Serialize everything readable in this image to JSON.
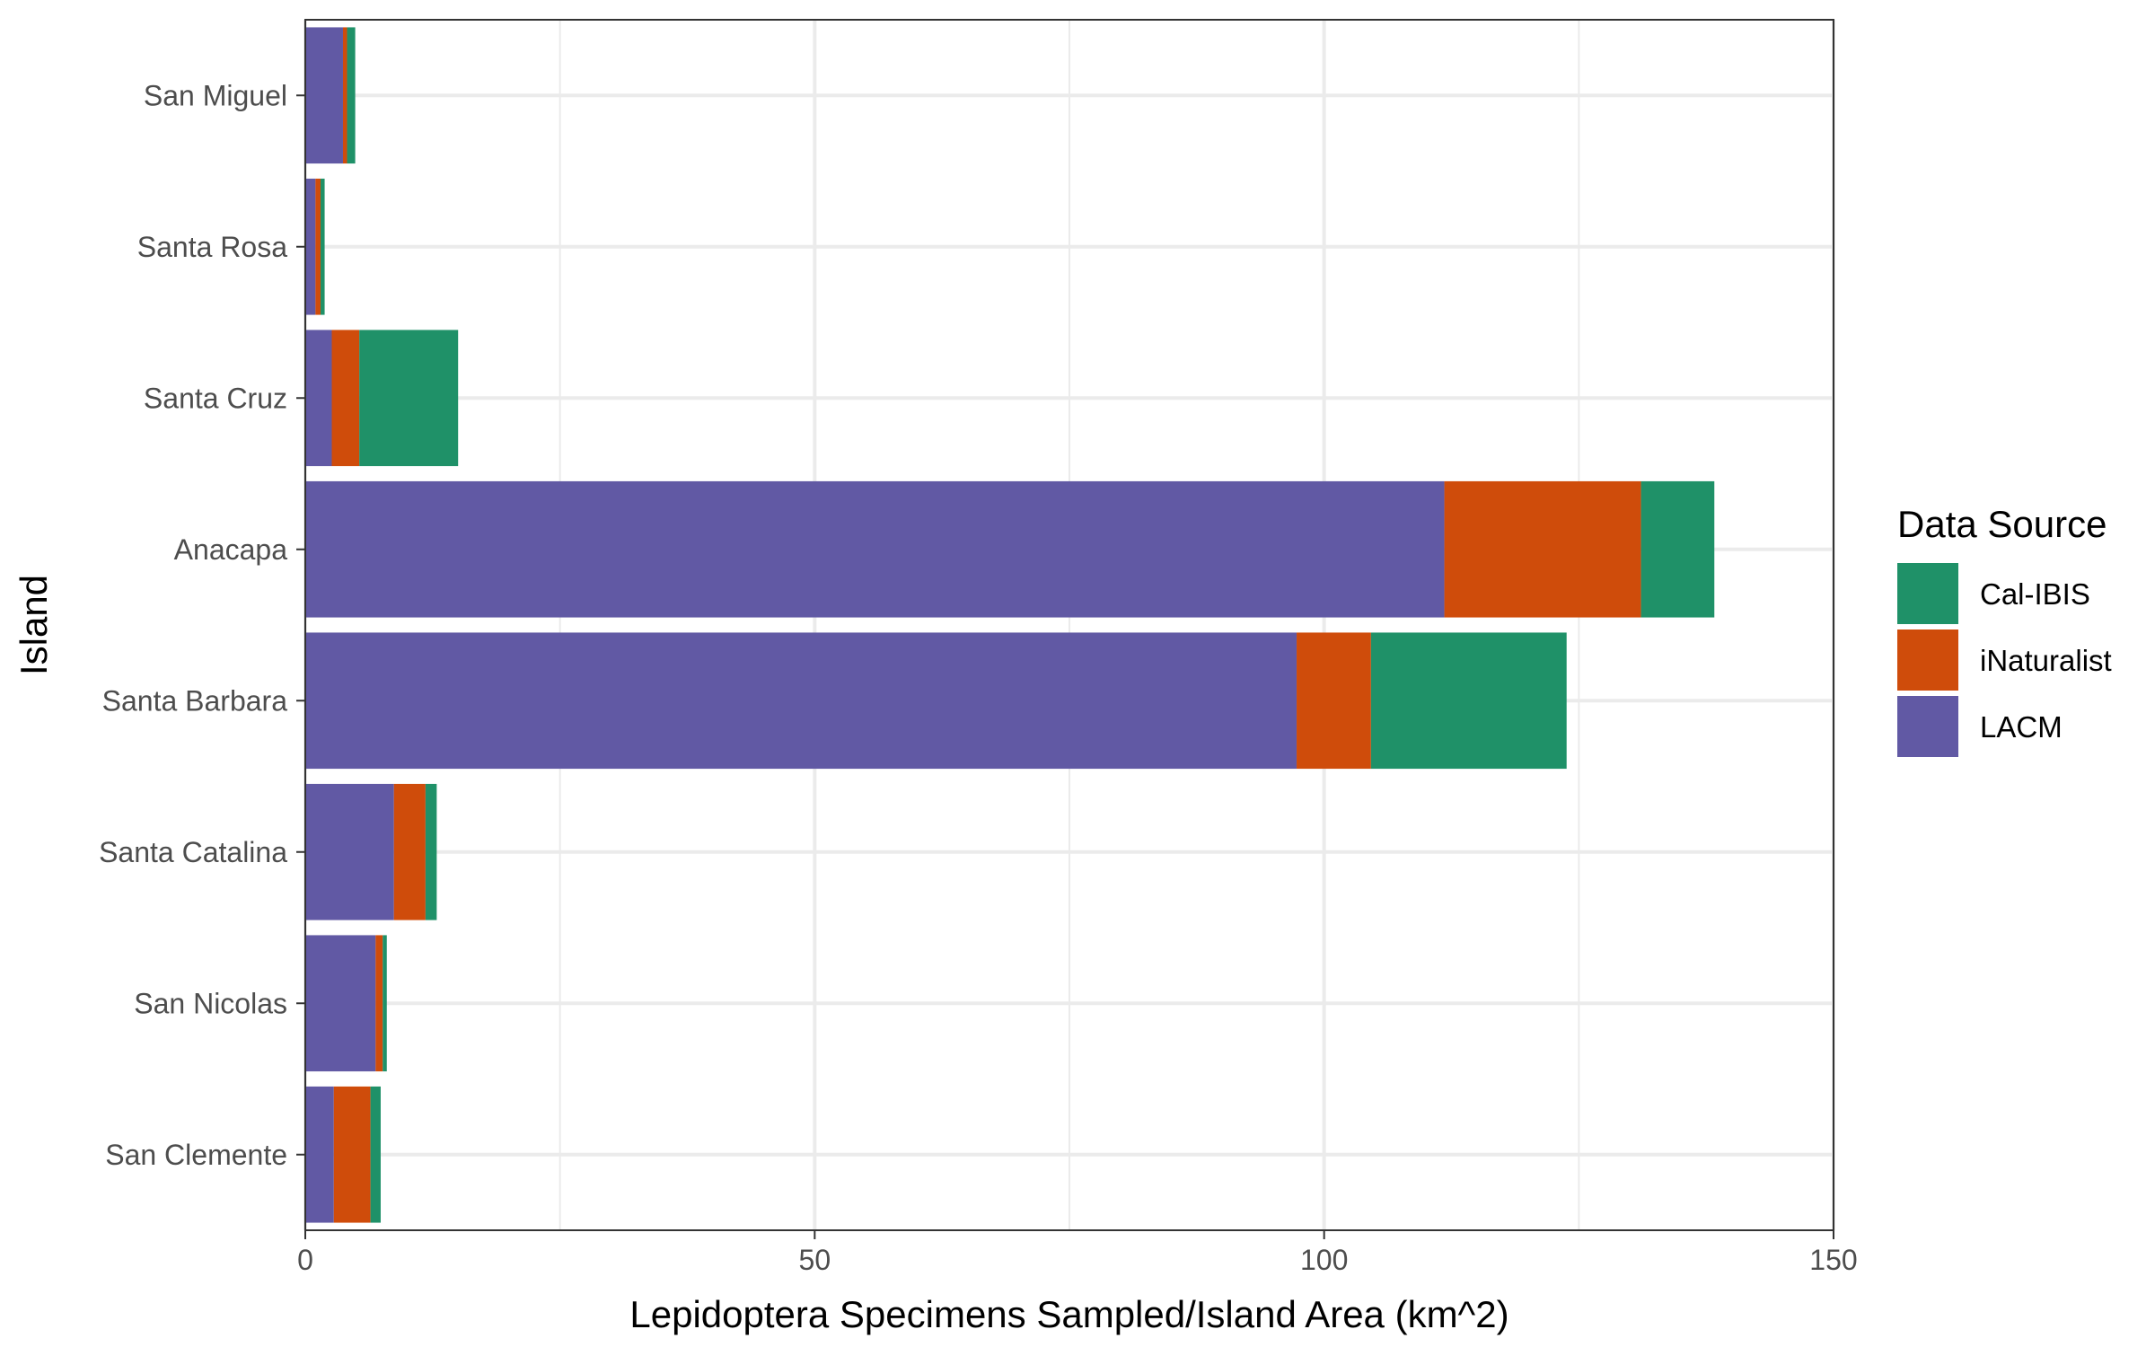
{
  "chart_data": {
    "type": "bar",
    "orientation": "horizontal",
    "stacked": true,
    "xlabel": "Lepidoptera Specimens Sampled/Island Area (km^2)",
    "ylabel": "Island",
    "xlim": [
      0,
      150
    ],
    "x_ticks": [
      0,
      50,
      100,
      150
    ],
    "grid": true,
    "legend_position": "right",
    "legend_title": "Data Source",
    "categories": [
      "San Miguel",
      "Santa Rosa",
      "Santa Cruz",
      "Anacapa",
      "Santa Barbara",
      "Santa Catalina",
      "San Nicolas",
      "San Clemente"
    ],
    "series": [
      {
        "name": "LACM",
        "color": "#6159a4",
        "values": [
          3.7,
          1.0,
          2.6,
          111.8,
          97.3,
          8.7,
          6.9,
          2.8
        ]
      },
      {
        "name": "iNaturalist",
        "color": "#cf4c0b",
        "values": [
          0.4,
          0.5,
          2.7,
          19.3,
          7.3,
          3.1,
          0.7,
          3.6
        ]
      },
      {
        "name": "Cal-IBIS",
        "color": "#1f9168",
        "values": [
          0.8,
          0.4,
          9.7,
          7.2,
          19.2,
          1.1,
          0.4,
          1.0
        ]
      }
    ],
    "legend_order": [
      "Cal-IBIS",
      "iNaturalist",
      "LACM"
    ]
  }
}
